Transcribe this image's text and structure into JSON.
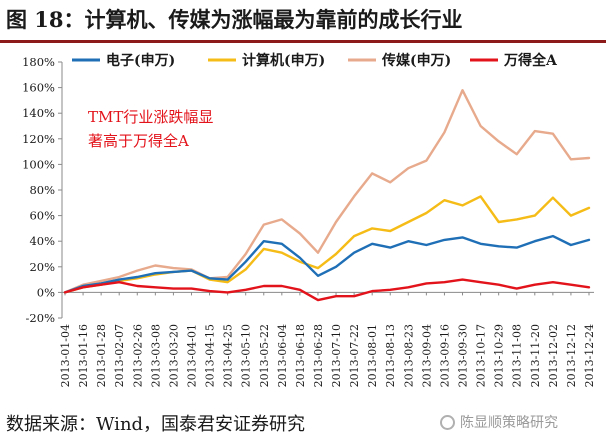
{
  "title": "图 18：计算机、传媒为涨幅最为靠前的成长行业",
  "footer": "数据来源：Wind，国泰君安证券研究",
  "watermark": "陈显顺策略研究",
  "colors": {
    "title_rule": "#8c1a1a",
    "electronics": "#1f6fb6",
    "computer": "#f5bc17",
    "media": "#e8aa8c",
    "wind_a": "#e3131b",
    "annotation": "#e3131b"
  },
  "chart_data": {
    "type": "line",
    "annotation": [
      "TMT行业涨跌幅显",
      "著高于万得全A"
    ],
    "ylim": [
      -20,
      180
    ],
    "yticks": [
      -20,
      0,
      20,
      40,
      60,
      80,
      100,
      120,
      140,
      160,
      180
    ],
    "ytick_labels": [
      "-20%",
      "0%",
      "20%",
      "40%",
      "60%",
      "80%",
      "100%",
      "120%",
      "140%",
      "160%",
      "180%"
    ],
    "x_dates": [
      "2013-01-04",
      "2013-01-16",
      "2013-01-28",
      "2013-02-07",
      "2013-02-26",
      "2013-03-08",
      "2013-03-20",
      "2013-04-01",
      "2013-04-15",
      "2013-04-25",
      "2013-05-10",
      "2013-05-22",
      "2013-06-04",
      "2013-06-18",
      "2013-06-28",
      "2013-07-10",
      "2013-07-22",
      "2013-08-01",
      "2013-08-13",
      "2013-08-23",
      "2013-09-04",
      "2013-09-16",
      "2013-09-30",
      "2013-10-17",
      "2013-10-29",
      "2013-11-08",
      "2013-11-20",
      "2013-12-02",
      "2013-12-12",
      "2013-12-24"
    ],
    "legend_position": "top",
    "grid": false,
    "series": [
      {
        "name": "电子(申万)",
        "color_key": "electronics",
        "values": [
          0,
          5,
          7,
          10,
          12,
          15,
          16,
          17,
          11,
          10,
          24,
          40,
          38,
          27,
          13,
          20,
          31,
          38,
          35,
          40,
          37,
          41,
          43,
          38,
          36,
          35,
          40,
          44,
          37,
          41
        ]
      },
      {
        "name": "计算机(申万)",
        "color_key": "computer",
        "values": [
          0,
          4,
          6,
          9,
          11,
          14,
          16,
          17,
          10,
          8,
          18,
          34,
          31,
          24,
          19,
          30,
          44,
          50,
          48,
          55,
          62,
          72,
          68,
          75,
          55,
          57,
          60,
          74,
          60,
          66
        ]
      },
      {
        "name": "传媒(申万)",
        "color_key": "media",
        "values": [
          0,
          6,
          9,
          12,
          17,
          21,
          19,
          18,
          11,
          12,
          30,
          53,
          57,
          46,
          31,
          55,
          75,
          93,
          86,
          97,
          103,
          125,
          158,
          130,
          118,
          108,
          126,
          124,
          104,
          105
        ]
      },
      {
        "name": "万得全A",
        "color_key": "wind_a",
        "values": [
          0,
          4,
          6,
          8,
          5,
          4,
          3,
          3,
          1,
          0,
          2,
          5,
          5,
          2,
          -6,
          -3,
          -3,
          1,
          2,
          4,
          7,
          8,
          10,
          8,
          6,
          3,
          6,
          8,
          6,
          4
        ]
      }
    ]
  }
}
